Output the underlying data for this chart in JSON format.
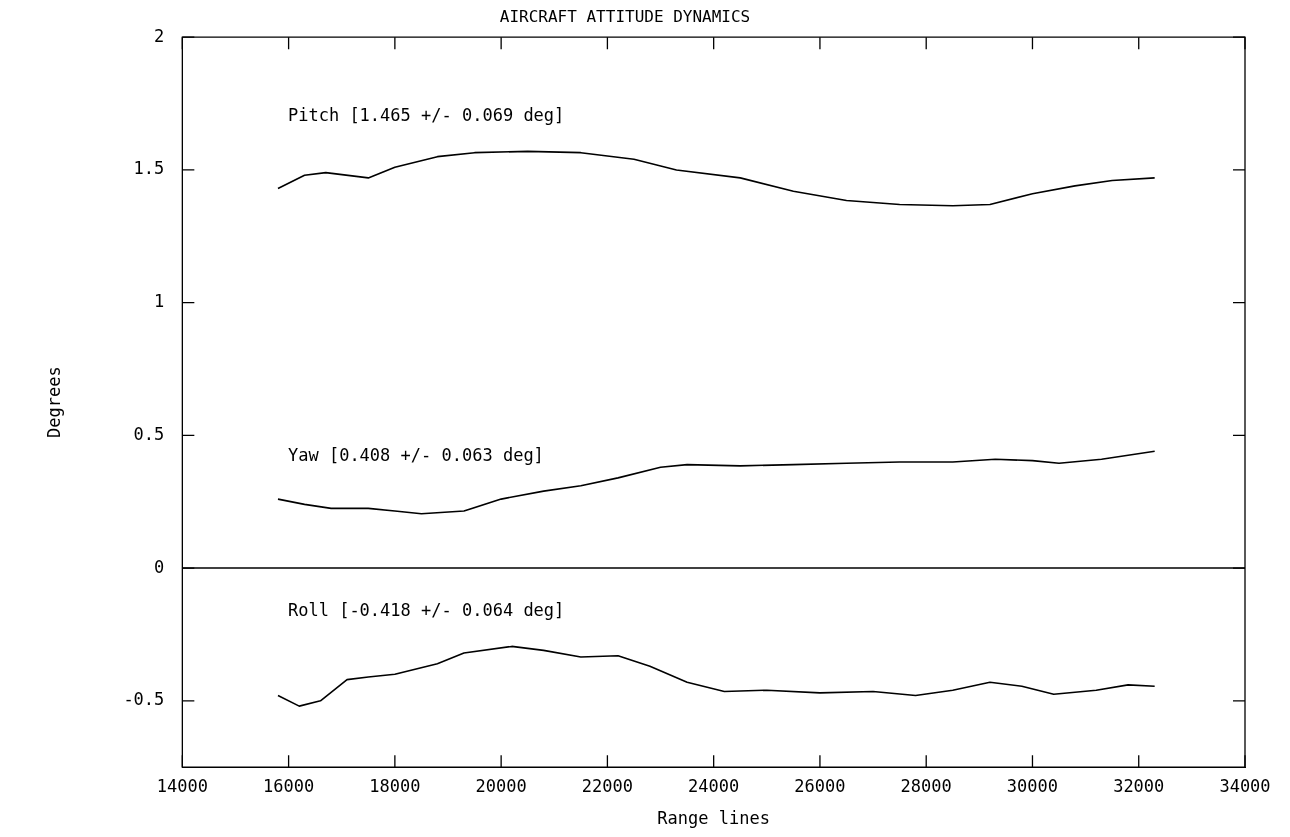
{
  "chart_data": {
    "type": "line",
    "title": "AIRCRAFT ATTITUDE DYNAMICS",
    "xlabel": "Range lines",
    "ylabel": "Degrees",
    "xlim": [
      14000,
      34000
    ],
    "xticks": [
      14000,
      16000,
      18000,
      20000,
      22000,
      24000,
      26000,
      28000,
      30000,
      32000,
      34000
    ],
    "ylim": [
      -0.75,
      2
    ],
    "yticks": [
      -0.5,
      0,
      0.5,
      1,
      1.5,
      2
    ],
    "grid": false,
    "legend": false,
    "marker": "none",
    "line_style": "solid",
    "ref_lines": [
      {
        "axis": "y",
        "value": 0,
        "color": "#000000"
      }
    ],
    "series": [
      {
        "name": "Pitch [1.465 +/- 0.069 deg]",
        "color": "#000000",
        "x": [
          15800,
          16300,
          16700,
          17500,
          18000,
          18800,
          19500,
          20500,
          21500,
          22500,
          23300,
          24500,
          25500,
          26500,
          27500,
          28500,
          29200,
          30000,
          30800,
          31500,
          32300
        ],
        "values": [
          1.43,
          1.48,
          1.49,
          1.47,
          1.51,
          1.55,
          1.565,
          1.57,
          1.565,
          1.54,
          1.5,
          1.47,
          1.42,
          1.385,
          1.37,
          1.365,
          1.37,
          1.41,
          1.44,
          1.46,
          1.47
        ]
      },
      {
        "name": "Yaw [0.408 +/- 0.063 deg]",
        "color": "#000000",
        "x": [
          15800,
          16300,
          16800,
          17500,
          18000,
          18500,
          19300,
          20000,
          20800,
          21500,
          22200,
          23000,
          23500,
          24500,
          25500,
          26500,
          27500,
          28500,
          29300,
          30000,
          30500,
          31300,
          32300
        ],
        "values": [
          0.26,
          0.24,
          0.225,
          0.225,
          0.215,
          0.205,
          0.215,
          0.26,
          0.29,
          0.31,
          0.34,
          0.38,
          0.39,
          0.385,
          0.39,
          0.395,
          0.4,
          0.4,
          0.41,
          0.405,
          0.395,
          0.41,
          0.44
        ]
      },
      {
        "name": "Roll [-0.418 +/- 0.064 deg]",
        "color": "#000000",
        "x": [
          15800,
          16200,
          16600,
          17100,
          17500,
          18000,
          18800,
          19300,
          20200,
          20800,
          21500,
          22200,
          22800,
          23500,
          24200,
          25000,
          26000,
          27000,
          27800,
          28500,
          29200,
          29800,
          30400,
          31200,
          31800,
          32300
        ],
        "values": [
          -0.48,
          -0.52,
          -0.5,
          -0.42,
          -0.41,
          -0.4,
          -0.36,
          -0.32,
          -0.295,
          -0.31,
          -0.335,
          -0.33,
          -0.37,
          -0.43,
          -0.465,
          -0.46,
          -0.47,
          -0.465,
          -0.48,
          -0.46,
          -0.43,
          -0.445,
          -0.475,
          -0.46,
          -0.44,
          -0.445
        ]
      }
    ]
  }
}
